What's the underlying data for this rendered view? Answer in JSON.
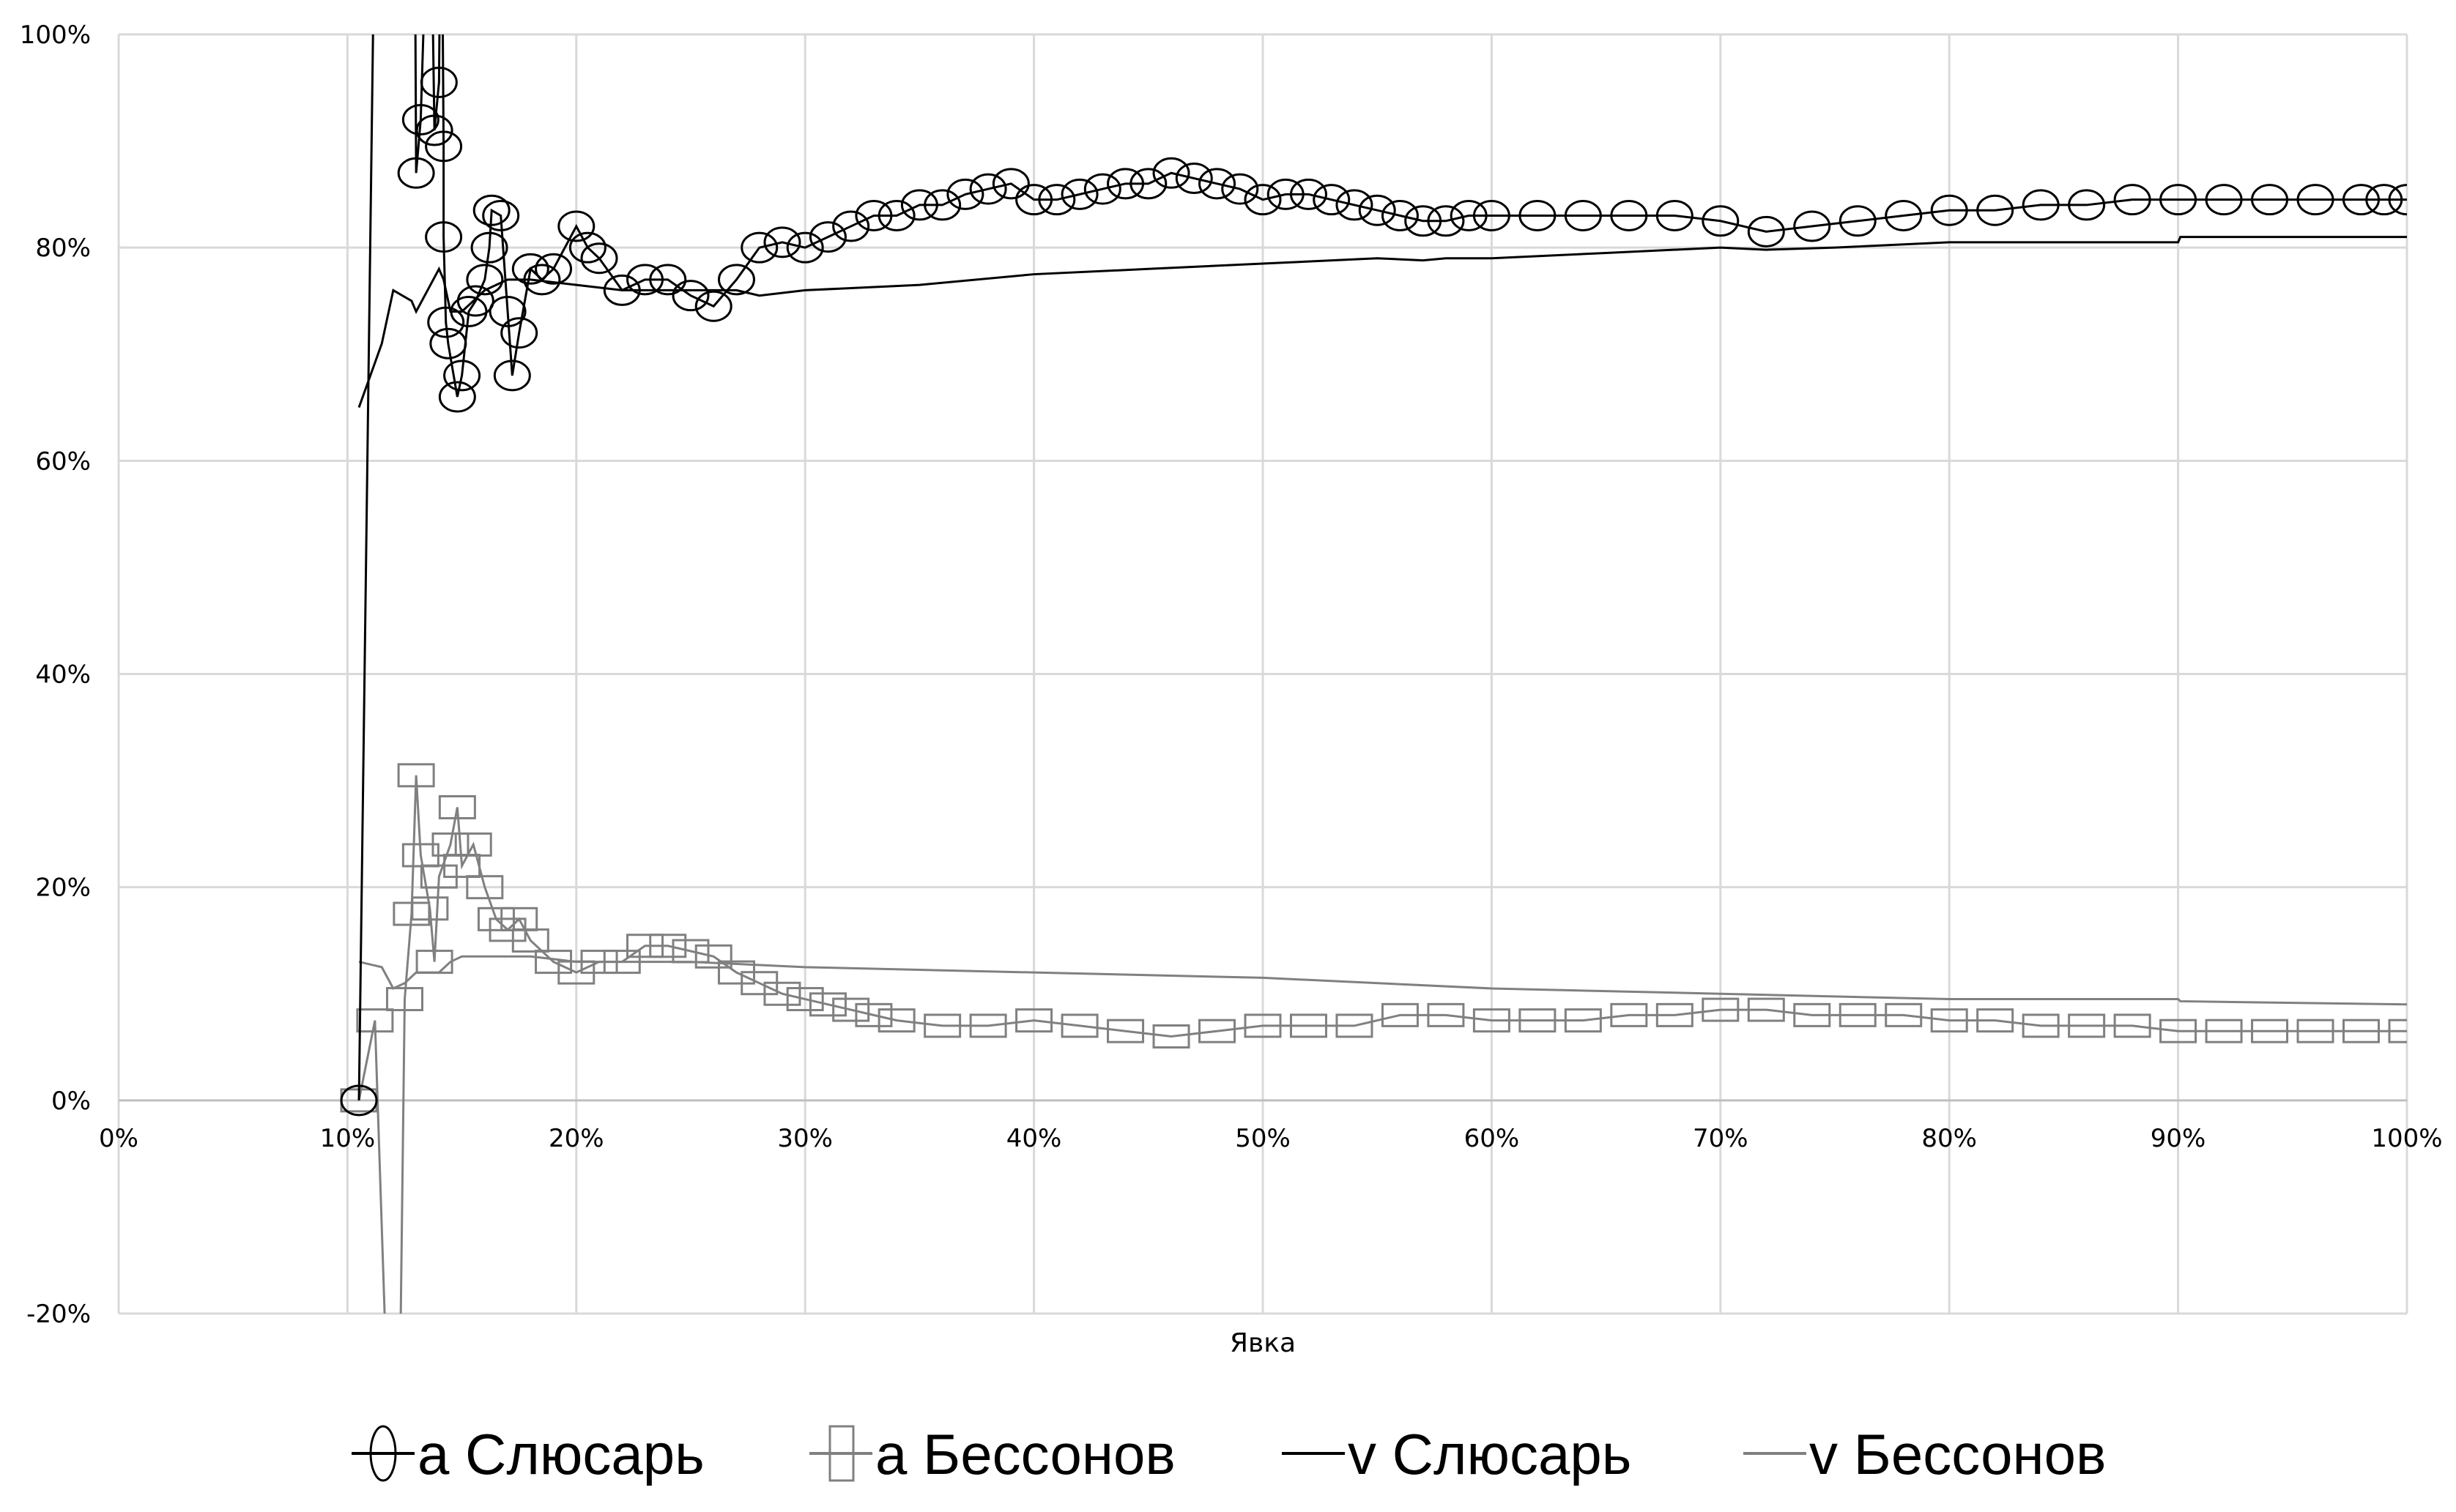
{
  "chart_data": {
    "type": "line",
    "title": "",
    "xlabel": "Явка",
    "ylabel": "",
    "xlim": [
      0,
      100
    ],
    "ylim": [
      -20,
      100
    ],
    "grid": true,
    "legend_position": "bottom",
    "x_ticks": [
      "0%",
      "10%",
      "20%",
      "30%",
      "40%",
      "50%",
      "60%",
      "70%",
      "80%",
      "90%",
      "100%"
    ],
    "y_ticks": [
      "-20%",
      "0%",
      "20%",
      "40%",
      "60%",
      "80%",
      "100%"
    ],
    "series": [
      {
        "name": "a Слюсарь",
        "color": "#000000",
        "marker": "circle",
        "line": true,
        "points": [
          [
            10.5,
            0
          ],
          [
            11.3,
            130
          ],
          [
            12.9,
            130
          ],
          [
            13,
            87
          ],
          [
            13.2,
            92
          ],
          [
            13.6,
            120
          ],
          [
            13.8,
            91
          ],
          [
            14,
            95.5
          ],
          [
            14.1,
            120
          ],
          [
            14.2,
            89.5
          ],
          [
            14.2,
            81
          ],
          [
            14.3,
            73
          ],
          [
            14.4,
            71
          ],
          [
            14.8,
            66
          ],
          [
            15,
            68
          ],
          [
            15.3,
            74
          ],
          [
            15.6,
            75
          ],
          [
            16,
            77
          ],
          [
            16.2,
            80
          ],
          [
            16.3,
            83.5
          ],
          [
            16.7,
            83
          ],
          [
            17,
            74
          ],
          [
            17.2,
            68
          ],
          [
            17.5,
            72
          ],
          [
            18,
            78
          ],
          [
            18.5,
            77
          ],
          [
            19,
            78
          ],
          [
            20,
            82
          ],
          [
            20.5,
            80
          ],
          [
            21,
            79
          ],
          [
            22,
            76
          ],
          [
            23,
            77
          ],
          [
            24,
            77
          ],
          [
            25,
            75.5
          ],
          [
            26,
            74.5
          ],
          [
            27,
            77
          ],
          [
            28,
            80
          ],
          [
            29,
            80.5
          ],
          [
            30,
            80
          ],
          [
            31,
            81
          ],
          [
            32,
            82
          ],
          [
            33,
            83
          ],
          [
            34,
            83
          ],
          [
            35,
            84
          ],
          [
            36,
            84
          ],
          [
            37,
            85
          ],
          [
            38,
            85.5
          ],
          [
            39,
            86
          ],
          [
            40,
            84.5
          ],
          [
            41,
            84.5
          ],
          [
            42,
            85
          ],
          [
            43,
            85.5
          ],
          [
            44,
            86
          ],
          [
            45,
            86
          ],
          [
            46,
            87
          ],
          [
            47,
            86.5
          ],
          [
            48,
            86
          ],
          [
            49,
            85.5
          ],
          [
            50,
            84.5
          ],
          [
            51,
            85
          ],
          [
            52,
            85
          ],
          [
            53,
            84.5
          ],
          [
            54,
            84
          ],
          [
            55,
            83.5
          ],
          [
            56,
            83
          ],
          [
            57,
            82.5
          ],
          [
            58,
            82.5
          ],
          [
            59,
            83
          ],
          [
            60,
            83
          ],
          [
            62,
            83
          ],
          [
            64,
            83
          ],
          [
            66,
            83
          ],
          [
            68,
            83
          ],
          [
            70,
            82.5
          ],
          [
            72,
            81.5
          ],
          [
            74,
            82
          ],
          [
            76,
            82.5
          ],
          [
            78,
            83
          ],
          [
            80,
            83.5
          ],
          [
            82,
            83.5
          ],
          [
            84,
            84
          ],
          [
            86,
            84
          ],
          [
            88,
            84.5
          ],
          [
            90,
            84.5
          ],
          [
            92,
            84.5
          ],
          [
            94,
            84.5
          ],
          [
            96,
            84.5
          ],
          [
            98,
            84.5
          ],
          [
            99,
            84.5
          ],
          [
            100,
            84.5
          ]
        ]
      },
      {
        "name": "a Бессонов",
        "color": "#808080",
        "marker": "square",
        "line": true,
        "points": [
          [
            10.5,
            0
          ],
          [
            11.2,
            7.5
          ],
          [
            11.7,
            -25
          ],
          [
            12.3,
            -25
          ],
          [
            12.5,
            9.5
          ],
          [
            12.8,
            17.5
          ],
          [
            13,
            30.5
          ],
          [
            13.2,
            23
          ],
          [
            13.6,
            18
          ],
          [
            13.8,
            13
          ],
          [
            14,
            21
          ],
          [
            14.5,
            24
          ],
          [
            14.8,
            27.5
          ],
          [
            15,
            22
          ],
          [
            15.5,
            24
          ],
          [
            16,
            20
          ],
          [
            16.5,
            17
          ],
          [
            17,
            16
          ],
          [
            17.5,
            17
          ],
          [
            18,
            15
          ],
          [
            19,
            13
          ],
          [
            20,
            12
          ],
          [
            21,
            13
          ],
          [
            22,
            13
          ],
          [
            23,
            14.5
          ],
          [
            24,
            14.5
          ],
          [
            25,
            14
          ],
          [
            26,
            13.5
          ],
          [
            27,
            12
          ],
          [
            28,
            11
          ],
          [
            29,
            10
          ],
          [
            30,
            9.5
          ],
          [
            31,
            9
          ],
          [
            32,
            8.5
          ],
          [
            33,
            8
          ],
          [
            34,
            7.5
          ],
          [
            36,
            7
          ],
          [
            38,
            7
          ],
          [
            40,
            7.5
          ],
          [
            42,
            7
          ],
          [
            44,
            6.5
          ],
          [
            46,
            6
          ],
          [
            48,
            6.5
          ],
          [
            50,
            7
          ],
          [
            52,
            7
          ],
          [
            54,
            7
          ],
          [
            56,
            8
          ],
          [
            58,
            8
          ],
          [
            60,
            7.5
          ],
          [
            62,
            7.5
          ],
          [
            64,
            7.5
          ],
          [
            66,
            8
          ],
          [
            68,
            8
          ],
          [
            70,
            8.5
          ],
          [
            72,
            8.5
          ],
          [
            74,
            8
          ],
          [
            76,
            8
          ],
          [
            78,
            8
          ],
          [
            80,
            7.5
          ],
          [
            82,
            7.5
          ],
          [
            84,
            7
          ],
          [
            86,
            7
          ],
          [
            88,
            7
          ],
          [
            90,
            6.5
          ],
          [
            92,
            6.5
          ],
          [
            94,
            6.5
          ],
          [
            96,
            6.5
          ],
          [
            98,
            6.5
          ],
          [
            100,
            6.5
          ]
        ]
      },
      {
        "name": "v Слюсарь",
        "color": "#000000",
        "marker": "none",
        "line": true,
        "points": [
          [
            10.5,
            65
          ],
          [
            11.5,
            71
          ],
          [
            12,
            76
          ],
          [
            12.8,
            75
          ],
          [
            13,
            74
          ],
          [
            13.5,
            76
          ],
          [
            14,
            78
          ],
          [
            14.2,
            77
          ],
          [
            14.5,
            74
          ],
          [
            15,
            74
          ],
          [
            16,
            76
          ],
          [
            17,
            77
          ],
          [
            18,
            77
          ],
          [
            20,
            76.5
          ],
          [
            22,
            76
          ],
          [
            25,
            76
          ],
          [
            27,
            76
          ],
          [
            28,
            75.5
          ],
          [
            30,
            76
          ],
          [
            35,
            76.5
          ],
          [
            40,
            77.5
          ],
          [
            45,
            78
          ],
          [
            50,
            78.5
          ],
          [
            55,
            79
          ],
          [
            57,
            78.8
          ],
          [
            58,
            79
          ],
          [
            60,
            79
          ],
          [
            65,
            79.5
          ],
          [
            70,
            80
          ],
          [
            72,
            79.8
          ],
          [
            75,
            80
          ],
          [
            80,
            80.5
          ],
          [
            85,
            80.5
          ],
          [
            90,
            80.5
          ],
          [
            90.1,
            81
          ],
          [
            95,
            81
          ],
          [
            100,
            81
          ]
        ]
      },
      {
        "name": "v Бессонов",
        "color": "#808080",
        "marker": "none",
        "line": true,
        "points": [
          [
            10.5,
            13
          ],
          [
            11.5,
            12.5
          ],
          [
            12,
            10.5
          ],
          [
            12.5,
            11
          ],
          [
            13,
            12
          ],
          [
            13.5,
            12
          ],
          [
            14,
            12
          ],
          [
            14.5,
            13
          ],
          [
            15,
            13.5
          ],
          [
            16,
            13.5
          ],
          [
            18,
            13.5
          ],
          [
            20,
            13
          ],
          [
            25,
            13
          ],
          [
            30,
            12.5
          ],
          [
            40,
            12
          ],
          [
            50,
            11.5
          ],
          [
            60,
            10.5
          ],
          [
            70,
            10
          ],
          [
            80,
            9.5
          ],
          [
            90,
            9.5
          ],
          [
            90.1,
            9.3
          ],
          [
            100,
            9
          ]
        ]
      }
    ]
  }
}
